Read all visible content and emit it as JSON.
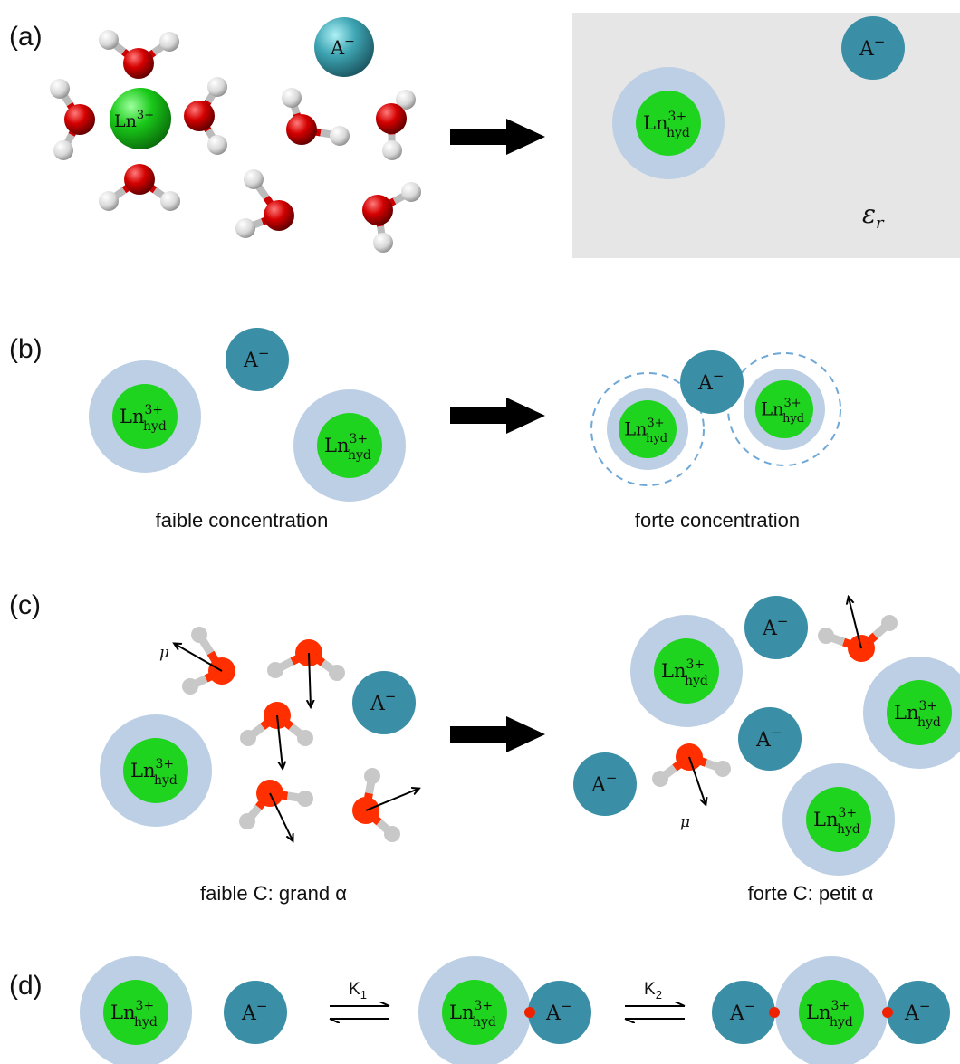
{
  "panels": {
    "a": {
      "label": "(a)"
    },
    "b": {
      "label": "(b)",
      "caption_left": "faible concentration",
      "caption_right": "forte concentration"
    },
    "c": {
      "label": "(c)",
      "caption_left": "faible C: grand α",
      "caption_right": "forte C: petit α"
    },
    "d": {
      "label": "(d)",
      "k1": "K",
      "k1_sub": "1",
      "k2": "K",
      "k2_sub": "2"
    }
  },
  "species": {
    "ln_bare": "Ln",
    "ln_bare_charge": "3+",
    "ln": "Ln",
    "ln_sup": "3+",
    "ln_sub": "hyd",
    "anion": "A",
    "anion_charge": "−"
  },
  "symbols": {
    "epsilon": "ε",
    "epsilon_sub": "r",
    "dipole": "μ"
  },
  "colors": {
    "shell": "#bccfe4",
    "core": "#1fd41f",
    "anion": "#3a8fa6",
    "oxygen_3d": "#d40000",
    "hydrogen_3d": "#e8e8e8",
    "oxygen_flat": "#ff2f00",
    "hydrogen_flat": "#c8c8c8",
    "continuum": "#e6e6e6",
    "arrow": "#000000",
    "contact": "#ee2200",
    "dashed": "#6fa8d6"
  }
}
